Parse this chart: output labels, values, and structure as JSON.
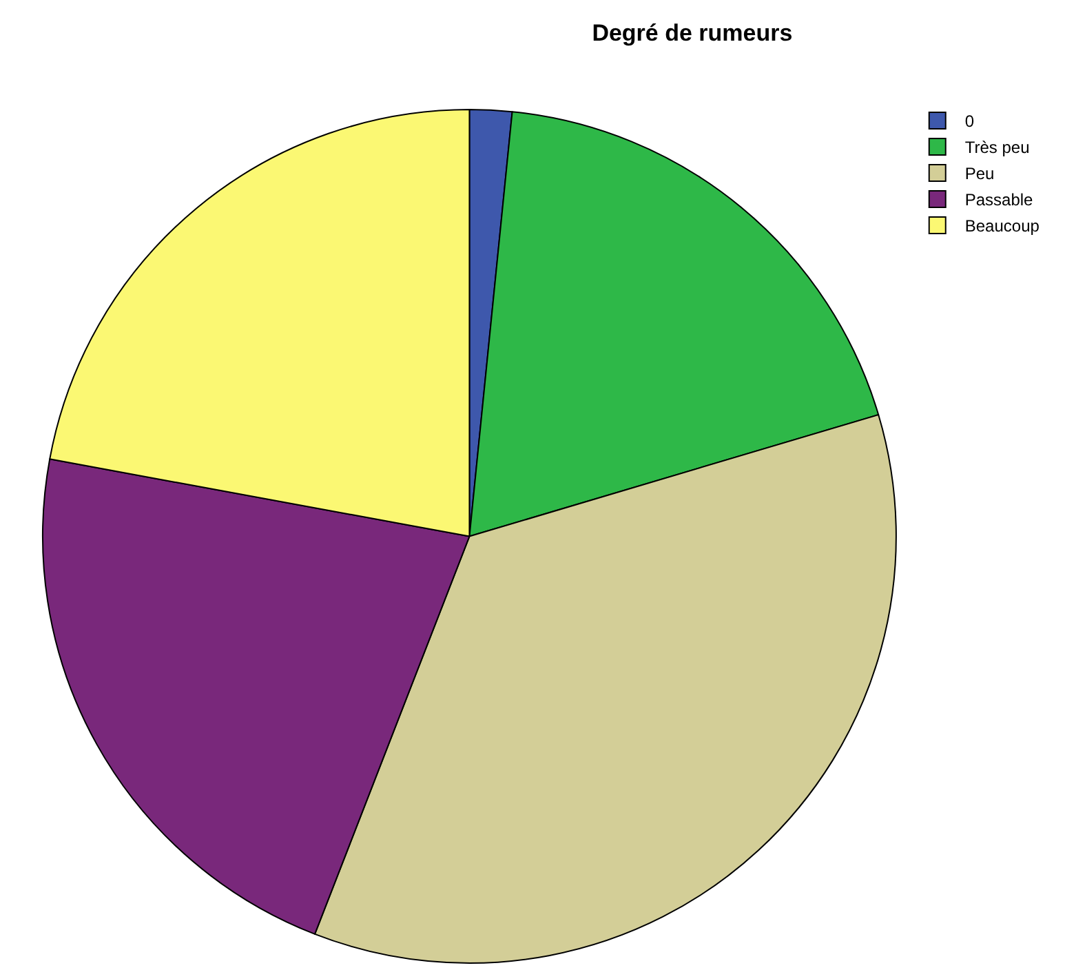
{
  "chart_data": {
    "type": "pie",
    "title": "Degré de rumeurs",
    "categories": [
      "0",
      "Très peu",
      "Peu",
      "Passable",
      "Beaucoup"
    ],
    "values": [
      1.6,
      18.8,
      35.5,
      22.0,
      22.1
    ],
    "colors": [
      "#3e58ac",
      "#2eb848",
      "#d3ce97",
      "#79287b",
      "#fbf873"
    ],
    "legend": "top right"
  }
}
